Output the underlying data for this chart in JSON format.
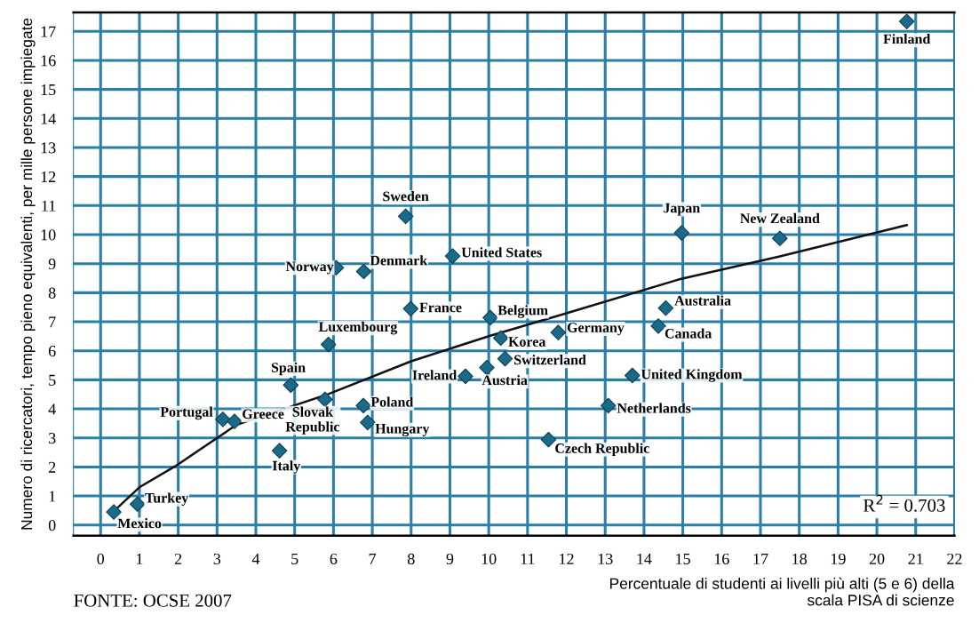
{
  "chart_data": {
    "type": "scatter",
    "xlabel": "Percentuale di studenti ai livelli più alti (5 e 6) della\nscala PISA di scienze",
    "ylabel": "Numero di ricercatori, tempo pieno equivalenti, per mille persone impiegate",
    "xlim": [
      -0.7,
      22
    ],
    "ylim": [
      -0.37,
      17.65
    ],
    "xticks": [
      0,
      1,
      2,
      3,
      4,
      5,
      6,
      7,
      8,
      9,
      10,
      11,
      12,
      13,
      14,
      15,
      16,
      17,
      18,
      19,
      20,
      21,
      22
    ],
    "yticks": [
      0,
      1,
      2,
      3,
      4,
      5,
      6,
      7,
      8,
      9,
      10,
      11,
      12,
      13,
      14,
      15,
      16,
      17
    ],
    "grid": true,
    "series": [
      {
        "marker": "diamond",
        "color": "#1b6a8a",
        "x": [
          0.34,
          0.95,
          3.15,
          3.45,
          4.61,
          4.9,
          5.78,
          5.87,
          6.77,
          6.88,
          7.99,
          9.4,
          9.95,
          10.04,
          7.86,
          6.07,
          6.78,
          9.07,
          20.77,
          14.97,
          17.5,
          10.31,
          10.42,
          11.79,
          14.56,
          14.37,
          13.7,
          13.08,
          11.54
        ],
        "values": [
          0.45,
          0.72,
          3.64,
          3.57,
          2.56,
          4.82,
          4.33,
          6.22,
          4.11,
          3.53,
          7.45,
          5.12,
          5.42,
          7.14,
          10.63,
          8.86,
          8.73,
          9.26,
          17.34,
          10.06,
          9.87,
          6.44,
          5.73,
          6.63,
          7.47,
          6.85,
          5.15,
          4.11,
          2.94
        ]
      },
      {
        "type": "line",
        "marker": "none",
        "line_style": "solid",
        "color": "#111111",
        "x": [
          0.4,
          1,
          1.93,
          3.5,
          5.87,
          8,
          10.04,
          12,
          14.96,
          17.5,
          20.77
        ],
        "values": [
          0.55,
          1.3,
          2.03,
          3.45,
          4.51,
          5.64,
          6.52,
          7.29,
          8.48,
          9.25,
          10.33
        ]
      }
    ],
    "annotations": [
      {
        "text": "Mexico",
        "x": 0.34,
        "y": 0.45
      },
      {
        "text": "Turkey",
        "x": 0.95,
        "y": 0.72
      },
      {
        "text": "Portugal",
        "x": 3.15,
        "y": 3.64
      },
      {
        "text": "Greece",
        "x": 3.45,
        "y": 3.57
      },
      {
        "text": "Italy",
        "x": 4.61,
        "y": 2.56
      },
      {
        "text": "Spain",
        "x": 4.9,
        "y": 4.82
      },
      {
        "text": "Slovak\nRepublic",
        "x": 5.78,
        "y": 4.33
      },
      {
        "text": "Luxembourg",
        "x": 5.87,
        "y": 6.22
      },
      {
        "text": "Poland",
        "x": 6.77,
        "y": 4.11
      },
      {
        "text": "Hungary",
        "x": 6.88,
        "y": 3.53
      },
      {
        "text": "France",
        "x": 7.99,
        "y": 7.45
      },
      {
        "text": "Ireland",
        "x": 9.4,
        "y": 5.12
      },
      {
        "text": "Austria",
        "x": 9.95,
        "y": 5.42
      },
      {
        "text": "Belgium",
        "x": 10.04,
        "y": 7.14
      },
      {
        "text": "Sweden",
        "x": 7.86,
        "y": 10.63
      },
      {
        "text": "Norway",
        "x": 6.07,
        "y": 8.86
      },
      {
        "text": "Denmark",
        "x": 6.78,
        "y": 8.73
      },
      {
        "text": "United States",
        "x": 9.07,
        "y": 9.26
      },
      {
        "text": "Finland",
        "x": 20.77,
        "y": 17.34
      },
      {
        "text": "Japan",
        "x": 14.97,
        "y": 10.06
      },
      {
        "text": "New Zealand",
        "x": 17.5,
        "y": 9.87
      },
      {
        "text": "Korea",
        "x": 10.31,
        "y": 6.44
      },
      {
        "text": "Switzerland",
        "x": 10.42,
        "y": 5.73
      },
      {
        "text": "Germany",
        "x": 11.79,
        "y": 6.63
      },
      {
        "text": "Australia",
        "x": 14.56,
        "y": 7.47
      },
      {
        "text": "Canada",
        "x": 14.37,
        "y": 6.85
      },
      {
        "text": "United Kingdom",
        "x": 13.7,
        "y": 5.15
      },
      {
        "text": "Netherlands",
        "x": 13.08,
        "y": 4.11
      },
      {
        "text": "Czech Republic",
        "x": 11.54,
        "y": 2.94
      },
      "R$^{2}$ = 0.703",
      "FONTE: OCSE 2007"
    ]
  }
}
